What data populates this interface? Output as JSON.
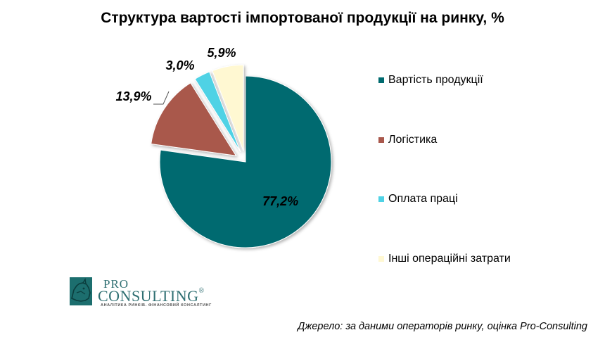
{
  "chart_data": {
    "type": "pie",
    "title": "Структура вартості імпортованої продукції на ринку, %",
    "categories": [
      "Вартість продукції",
      "Логістика",
      "Оплата праці",
      "Інші операційні затрати"
    ],
    "values": [
      77.2,
      13.9,
      3.0,
      5.9
    ],
    "labels": [
      "77,2%",
      "13,9%",
      "3,0%",
      "5,9%"
    ],
    "colors": [
      "#006a6f",
      "#a9584c",
      "#4fd2e5",
      "#fff8d2"
    ],
    "exploded": [
      false,
      true,
      true,
      true
    ],
    "legend_position": "right"
  },
  "logo": {
    "line1": "PRO",
    "line2": "CONSULTING",
    "registered": "®",
    "tagline": "АНАЛІТИКА РИНКІВ. ФІНАНСОВИЙ КОНСАЛТИНГ"
  },
  "source": "Джерело: за даними операторів ринку, оцінка Pro-Consulting"
}
